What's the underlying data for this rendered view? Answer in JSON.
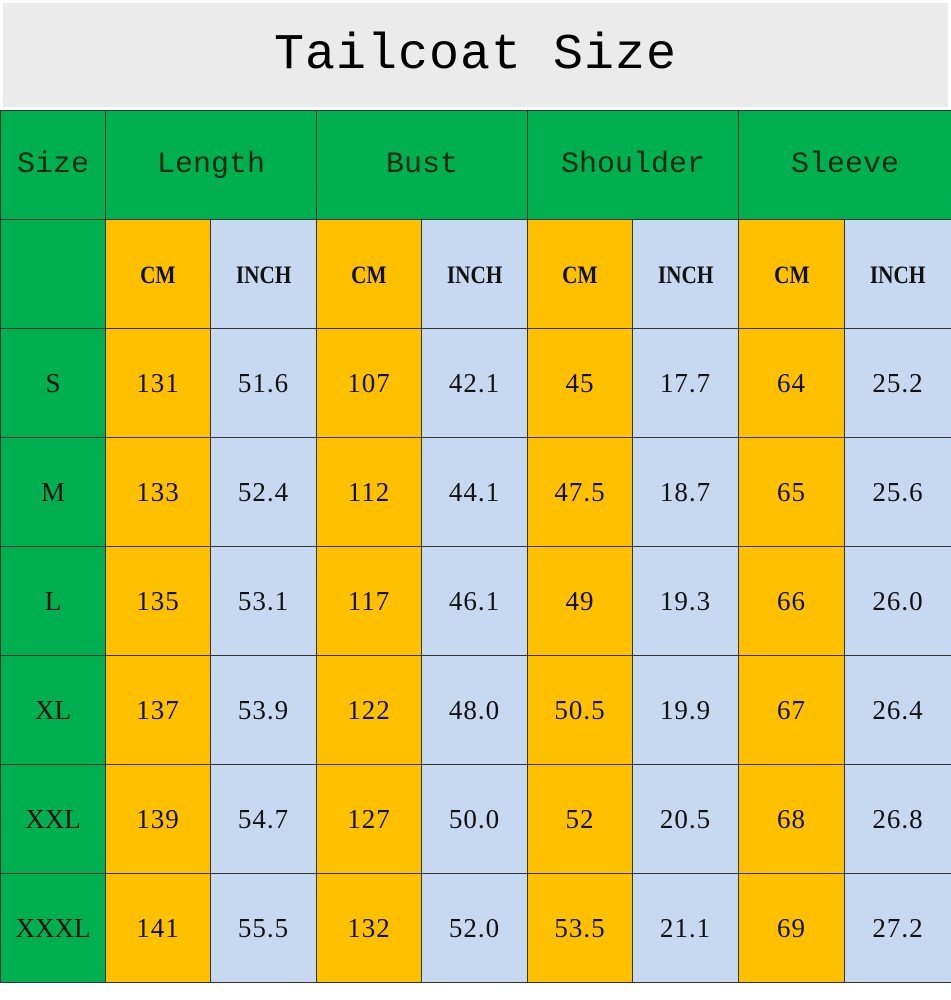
{
  "title": "Tailcoat Size",
  "colors": {
    "header": "#00b050",
    "cm": "#ffc000",
    "inch": "#c6d9f1",
    "title_bg": "#ebebeb"
  },
  "chart_data": {
    "type": "table",
    "title": "Tailcoat Size",
    "columns": [
      "Size",
      "Length",
      "Bust",
      "Shoulder",
      "Sleeve"
    ],
    "units": [
      "CM",
      "INCH"
    ],
    "rows": [
      {
        "size": "S",
        "values": [
          "131",
          "51.6",
          "107",
          "42.1",
          "45",
          "17.7",
          "64",
          "25.2"
        ]
      },
      {
        "size": "M",
        "values": [
          "133",
          "52.4",
          "112",
          "44.1",
          "47.5",
          "18.7",
          "65",
          "25.6"
        ]
      },
      {
        "size": "L",
        "values": [
          "135",
          "53.1",
          "117",
          "46.1",
          "49",
          "19.3",
          "66",
          "26.0"
        ]
      },
      {
        "size": "XL",
        "values": [
          "137",
          "53.9",
          "122",
          "48.0",
          "50.5",
          "19.9",
          "67",
          "26.4"
        ]
      },
      {
        "size": "XXL",
        "values": [
          "139",
          "54.7",
          "127",
          "50.0",
          "52",
          "20.5",
          "68",
          "26.8"
        ]
      },
      {
        "size": "XXXL",
        "values": [
          "141",
          "55.5",
          "132",
          "52.0",
          "53.5",
          "21.1",
          "69",
          "27.2"
        ]
      }
    ]
  }
}
